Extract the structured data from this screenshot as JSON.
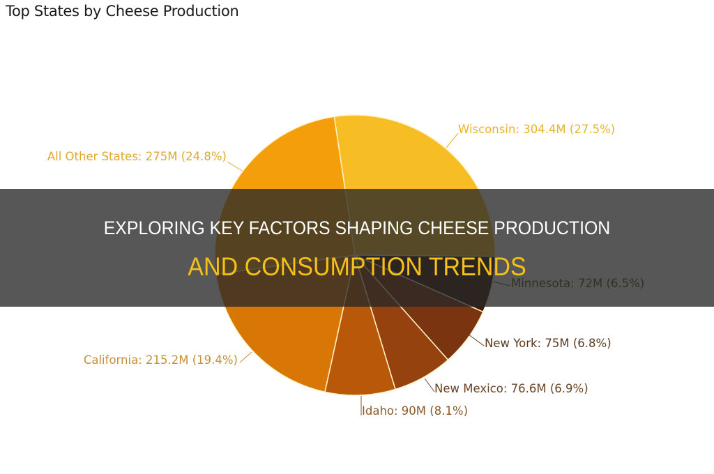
{
  "chart_data": {
    "type": "pie",
    "title": "Top States by Cheese Production",
    "unit": "M",
    "slices": [
      {
        "label": "Wisconsin",
        "value": 304.4,
        "percent": 27.5,
        "display": "Wisconsin: 304.4M (27.5%)",
        "color": "#f7bd25",
        "label_color": "#e8b52a"
      },
      {
        "label": "Minnesota",
        "value": 72,
        "percent": 6.5,
        "display": "Minnesota: 72M (6.5%)",
        "color": "#3d1a05",
        "label_color": "#5c4a14"
      },
      {
        "label": "New York",
        "value": 75,
        "percent": 6.8,
        "display": "New York: 75M (6.8%)",
        "color": "#7a3510",
        "label_color": "#5a3a22"
      },
      {
        "label": "New Mexico",
        "value": 76.6,
        "percent": 6.9,
        "display": "New Mexico: 76.6M (6.9%)",
        "color": "#96420e",
        "label_color": "#6b4425"
      },
      {
        "label": "Idaho",
        "value": 90,
        "percent": 8.1,
        "display": "Idaho: 90M (8.1%)",
        "color": "#b85808",
        "label_color": "#8a5a2a"
      },
      {
        "label": "California",
        "value": 215.2,
        "percent": 19.4,
        "display": "California: 215.2M (19.4%)",
        "color": "#d97706",
        "label_color": "#c49038"
      },
      {
        "label": "All Other States",
        "value": 275,
        "percent": 24.8,
        "display": "All Other States: 275M (24.8%)",
        "color": "#f59e0b",
        "label_color": "#e0a830"
      }
    ],
    "start_angle_deg": -8.5,
    "legend": "none (data labels on slices)"
  },
  "overlay": {
    "line1": "EXPLORING KEY FACTORS SHAPING CHEESE PRODUCTION",
    "line2": "AND CONSUMPTION TRENDS"
  }
}
